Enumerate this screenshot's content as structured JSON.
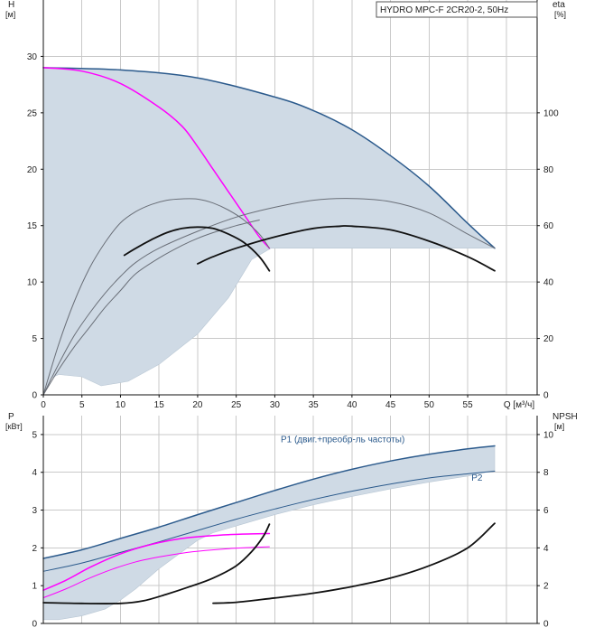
{
  "header": {
    "title": "HYDRO MPC-F 2CR20-2, 50Hz"
  },
  "colors": {
    "envelope": "#cfdae5",
    "envelope_edge": "#b9c7d4",
    "blue_curve": "#2b5a8c",
    "magenta_curve": "#ff00ff",
    "black_curve": "#111111",
    "gray_curve": "#6a6f78",
    "grid": "#c9c9c9"
  },
  "chart_data": [
    {
      "type": "line",
      "axes": {
        "left_label": "H\n[м]",
        "right_label": "eta\n[%]",
        "x_unit_label": "Q [м³/ч]",
        "xlim": [
          0,
          64
        ],
        "ylim": [
          0,
          35
        ],
        "y2lim": [
          0,
          140
        ],
        "x_ticks": [
          0,
          5,
          10,
          15,
          20,
          25,
          30,
          35,
          40,
          45,
          50,
          55
        ],
        "y_ticks": [
          0,
          5,
          10,
          15,
          20,
          25,
          30
        ],
        "y2_ticks": [
          0,
          20,
          40,
          60,
          80,
          100
        ]
      },
      "grid": true,
      "envelope": {
        "upper": [
          [
            0,
            29
          ],
          [
            10,
            28.8
          ],
          [
            20,
            28.1
          ],
          [
            30,
            26.4
          ],
          [
            35,
            25.2
          ],
          [
            40,
            23.5
          ],
          [
            45,
            21.2
          ],
          [
            50,
            18.5
          ],
          [
            55,
            15.2
          ],
          [
            58.5,
            13
          ]
        ],
        "lower": [
          [
            58.5,
            13
          ],
          [
            30,
            13
          ],
          [
            29.5,
            13
          ],
          [
            27,
            12
          ],
          [
            24,
            8.6
          ],
          [
            20,
            5.4
          ],
          [
            15,
            2.7
          ],
          [
            11,
            1.2
          ],
          [
            7.5,
            0.8
          ],
          [
            5,
            1.6
          ],
          [
            2,
            1.8
          ],
          [
            1,
            1.5
          ],
          [
            0,
            0
          ]
        ]
      },
      "series": [
        {
          "color": "blue_curve",
          "axis": "left",
          "width": 1.5,
          "points": [
            [
              0,
              29
            ],
            [
              10,
              28.8
            ],
            [
              20,
              28.1
            ],
            [
              30,
              26.4
            ],
            [
              35,
              25.2
            ],
            [
              40,
              23.5
            ],
            [
              45,
              21.2
            ],
            [
              50,
              18.5
            ],
            [
              55,
              15.2
            ],
            [
              58.5,
              13
            ]
          ]
        },
        {
          "color": "magenta_curve",
          "axis": "left",
          "width": 1.5,
          "points": [
            [
              0,
              29
            ],
            [
              5,
              28.7
            ],
            [
              10,
              27.6
            ],
            [
              15,
              25.5
            ],
            [
              18,
              23.8
            ],
            [
              20,
              22
            ],
            [
              22,
              20
            ],
            [
              24,
              18
            ],
            [
              26,
              16
            ],
            [
              28,
              14
            ],
            [
              29.3,
              13
            ]
          ]
        },
        {
          "color": "gray_curve",
          "axis": "right",
          "width": 1,
          "points": [
            [
              0,
              0
            ],
            [
              2,
              18
            ],
            [
              4,
              33
            ],
            [
              6,
              45
            ],
            [
              8,
              54
            ],
            [
              10,
              61
            ],
            [
              12,
              65
            ],
            [
              14,
              67.5
            ],
            [
              16,
              69
            ],
            [
              18,
              69.5
            ],
            [
              20,
              69.4
            ],
            [
              22,
              68
            ],
            [
              24,
              65.5
            ],
            [
              26,
              62
            ],
            [
              28,
              57
            ],
            [
              29.3,
              52
            ]
          ]
        },
        {
          "color": "gray_curve",
          "axis": "right",
          "width": 1,
          "points": [
            [
              0,
              0
            ],
            [
              2,
              11
            ],
            [
              4,
              21
            ],
            [
              6,
              29
            ],
            [
              8,
              36
            ],
            [
              10,
              42
            ],
            [
              12,
              47
            ],
            [
              15,
              52
            ],
            [
              20,
              58
            ],
            [
              25,
              63
            ],
            [
              30,
              66.5
            ],
            [
              35,
              69
            ],
            [
              40,
              69.6
            ],
            [
              45,
              68.5
            ],
            [
              50,
              64.5
            ],
            [
              55,
              57
            ],
            [
              58.5,
              52
            ]
          ]
        },
        {
          "color": "gray_curve",
          "axis": "right",
          "width": 1,
          "points": [
            [
              0,
              0
            ],
            [
              2,
              9
            ],
            [
              4,
              17
            ],
            [
              6,
              24
            ],
            [
              8,
              31
            ],
            [
              10,
              37
            ],
            [
              12,
              43
            ],
            [
              15,
              48.5
            ],
            [
              18,
              53
            ],
            [
              20,
              55.5
            ],
            [
              22,
              57.5
            ],
            [
              25,
              60
            ],
            [
              28,
              62
            ]
          ]
        },
        {
          "color": "black_curve",
          "axis": "right",
          "width": 1.8,
          "points": [
            [
              10.5,
              49.5
            ],
            [
              12,
              52
            ],
            [
              14,
              55
            ],
            [
              16,
              57.5
            ],
            [
              18,
              59
            ],
            [
              20,
              59.5
            ],
            [
              22,
              59
            ],
            [
              24,
              57
            ],
            [
              26,
              54
            ],
            [
              28,
              49
            ],
            [
              29.3,
              44
            ]
          ]
        },
        {
          "color": "black_curve",
          "axis": "right",
          "width": 1.8,
          "points": [
            [
              20,
              46.5
            ],
            [
              22,
              49
            ],
            [
              25,
              52
            ],
            [
              30,
              56
            ],
            [
              35,
              59
            ],
            [
              38.5,
              59.8
            ],
            [
              40,
              59.8
            ],
            [
              45,
              58.5
            ],
            [
              50,
              54.5
            ],
            [
              55,
              49
            ],
            [
              58.5,
              44
            ]
          ]
        }
      ]
    },
    {
      "type": "line",
      "axes": {
        "left_label": "P\n[кВт]",
        "right_label": "NPSH\n[м]",
        "xlim": [
          0,
          64
        ],
        "ylim": [
          0,
          5.5
        ],
        "y2lim": [
          0,
          11
        ],
        "y_ticks": [
          0,
          1,
          2,
          3,
          4,
          5
        ],
        "y2_ticks": [
          0,
          2,
          4,
          6,
          8,
          10
        ]
      },
      "grid": true,
      "envelope": {
        "upper": [
          [
            0,
            1.72
          ],
          [
            5,
            1.95
          ],
          [
            10,
            2.25
          ],
          [
            15,
            2.55
          ],
          [
            20,
            2.88
          ],
          [
            25,
            3.2
          ],
          [
            30,
            3.52
          ],
          [
            35,
            3.82
          ],
          [
            40,
            4.08
          ],
          [
            45,
            4.3
          ],
          [
            50,
            4.48
          ],
          [
            55,
            4.62
          ],
          [
            58.5,
            4.7
          ]
        ],
        "lower": [
          [
            58.5,
            4.7
          ],
          [
            58.5,
            4.05
          ],
          [
            55,
            3.9
          ],
          [
            50,
            3.74
          ],
          [
            45,
            3.56
          ],
          [
            40,
            3.36
          ],
          [
            35,
            3.14
          ],
          [
            30,
            2.88
          ],
          [
            25,
            2.58
          ],
          [
            22,
            2.4
          ],
          [
            20,
            2.2
          ],
          [
            15,
            1.45
          ],
          [
            12,
            0.92
          ],
          [
            10,
            0.62
          ],
          [
            8,
            0.38
          ],
          [
            5,
            0.2
          ],
          [
            2,
            0.1
          ],
          [
            0,
            0.1
          ]
        ]
      },
      "annotations": [
        {
          "text": "P1 (двиг.+преобр-ль частоты)",
          "x": 38.8,
          "y": 4.8,
          "color": "blue_curve"
        },
        {
          "text": "P2",
          "x": 56.2,
          "y": 3.78,
          "color": "blue_curve"
        }
      ],
      "series": [
        {
          "name": "P1 (двиг.+преобр-ль частоты)",
          "color": "blue_curve",
          "axis": "left",
          "width": 1.5,
          "points": [
            [
              0,
              1.72
            ],
            [
              5,
              1.95
            ],
            [
              10,
              2.25
            ],
            [
              15,
              2.55
            ],
            [
              20,
              2.88
            ],
            [
              25,
              3.2
            ],
            [
              30,
              3.52
            ],
            [
              35,
              3.82
            ],
            [
              40,
              4.08
            ],
            [
              45,
              4.3
            ],
            [
              50,
              4.48
            ],
            [
              55,
              4.62
            ],
            [
              58.5,
              4.7
            ]
          ]
        },
        {
          "name": "P2",
          "color": "blue_curve",
          "axis": "left",
          "width": 1,
          "points": [
            [
              0,
              1.38
            ],
            [
              5,
              1.6
            ],
            [
              10,
              1.88
            ],
            [
              15,
              2.16
            ],
            [
              20,
              2.46
            ],
            [
              25,
              2.76
            ],
            [
              30,
              3.03
            ],
            [
              35,
              3.28
            ],
            [
              40,
              3.5
            ],
            [
              45,
              3.69
            ],
            [
              50,
              3.85
            ],
            [
              55,
              3.96
            ],
            [
              58.5,
              4.03
            ]
          ]
        },
        {
          "color": "magenta_curve",
          "axis": "left",
          "width": 1.5,
          "points": [
            [
              0,
              0.88
            ],
            [
              3,
              1.15
            ],
            [
              6,
              1.48
            ],
            [
              9,
              1.76
            ],
            [
              12,
              1.98
            ],
            [
              15,
              2.14
            ],
            [
              18,
              2.25
            ],
            [
              21,
              2.31
            ],
            [
              24,
              2.35
            ],
            [
              27,
              2.37
            ],
            [
              29.3,
              2.38
            ]
          ]
        },
        {
          "color": "magenta_curve",
          "axis": "left",
          "width": 1,
          "points": [
            [
              0,
              0.68
            ],
            [
              3,
              0.92
            ],
            [
              6,
              1.2
            ],
            [
              9,
              1.44
            ],
            [
              12,
              1.63
            ],
            [
              15,
              1.76
            ],
            [
              18,
              1.86
            ],
            [
              21,
              1.93
            ],
            [
              24,
              1.98
            ],
            [
              27,
              2.01
            ],
            [
              29.3,
              2.03
            ]
          ]
        },
        {
          "color": "black_curve",
          "axis": "right",
          "width": 1.8,
          "points": [
            [
              0,
              1.1
            ],
            [
              5,
              1.06
            ],
            [
              10,
              1.06
            ],
            [
              13,
              1.2
            ],
            [
              16,
              1.55
            ],
            [
              19,
              1.95
            ],
            [
              22,
              2.4
            ],
            [
              25,
              3.05
            ],
            [
              27,
              3.8
            ],
            [
              28.5,
              4.6
            ],
            [
              29.3,
              5.25
            ]
          ]
        },
        {
          "color": "black_curve",
          "axis": "right",
          "width": 1.8,
          "points": [
            [
              22,
              1.07
            ],
            [
              25,
              1.12
            ],
            [
              30,
              1.35
            ],
            [
              35,
              1.6
            ],
            [
              40,
              1.95
            ],
            [
              45,
              2.4
            ],
            [
              50,
              3.05
            ],
            [
              55,
              4.0
            ],
            [
              58.5,
              5.3
            ]
          ]
        }
      ]
    }
  ]
}
